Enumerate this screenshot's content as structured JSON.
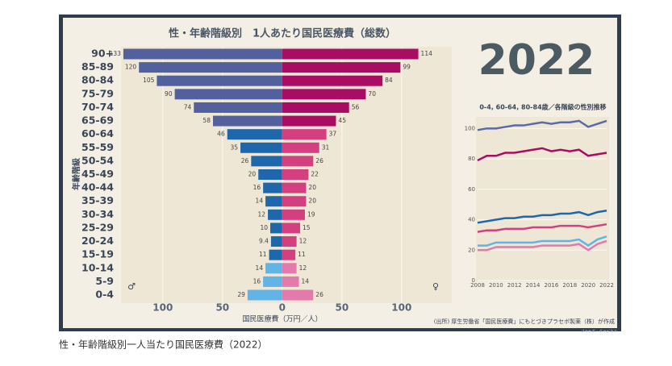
{
  "chart_data": [
    {
      "type": "bar",
      "orientation": "horizontal",
      "title": "性・年齢階級別　1人あたり国民医療費（総数）",
      "xlabel": "国民医療費（万円／人）",
      "ylabel": "年齢階級",
      "male_symbol": "♂",
      "female_symbol": "♀",
      "source": "(出所) 厚生労働省「国民医療費」にもとづきプラセボ製薬（株）が作成",
      "credit": "プラセボ・グラビカス",
      "categories": [
        "90+",
        "85-89",
        "80-84",
        "75-79",
        "70-74",
        "65-69",
        "60-64",
        "55-59",
        "50-54",
        "45-49",
        "40-44",
        "35-39",
        "30-34",
        "25-29",
        "20-24",
        "15-19",
        "10-14",
        "5-9",
        "0-4"
      ],
      "series": [
        {
          "values": [
            133,
            120,
            105,
            90,
            74,
            58,
            46,
            35,
            26,
            20,
            16,
            14,
            12,
            10,
            9.4,
            11,
            14,
            16,
            29
          ],
          "colors": [
            "#52609e",
            "#52609e",
            "#52609e",
            "#52609e",
            "#52609e",
            "#52609e",
            "#1f67ad",
            "#1f67ad",
            "#1f67ad",
            "#1f67ad",
            "#1f67ad",
            "#1f67ad",
            "#1f67ad",
            "#1f67ad",
            "#1f67ad",
            "#1f67ad",
            "#62b3e6",
            "#62b3e6",
            "#62b3e6"
          ]
        },
        {
          "values": [
            114,
            99,
            84,
            70,
            56,
            45,
            37,
            31,
            26,
            22,
            20,
            20,
            19,
            15,
            12,
            11,
            12,
            14,
            26
          ],
          "colors": [
            "#a80d63",
            "#a80d63",
            "#a80d63",
            "#a80d63",
            "#a80d63",
            "#a80d63",
            "#d33f7f",
            "#d33f7f",
            "#d33f7f",
            "#d33f7f",
            "#d33f7f",
            "#d33f7f",
            "#d33f7f",
            "#d33f7f",
            "#d33f7f",
            "#d33f7f",
            "#e47aab",
            "#e47aab",
            "#e47aab"
          ]
        }
      ],
      "xlim": [
        -135,
        142
      ],
      "xticks": [
        {
          "value": -100,
          "label": "100"
        },
        {
          "value": -50,
          "label": "50"
        },
        0,
        50,
        100
      ],
      "grid": true
    },
    {
      "type": "line",
      "annotation": "2022",
      "title": "0-4, 60-64, 80-84歳／各階級の性別推移",
      "x": [
        2008,
        2009,
        2010,
        2011,
        2012,
        2013,
        2014,
        2015,
        2016,
        2017,
        2018,
        2019,
        2020,
        2021,
        2022
      ],
      "series": [
        {
          "color": "#5a6aa6",
          "values": [
            99,
            100,
            100,
            101,
            102,
            102,
            103,
            104,
            103,
            104,
            104,
            105,
            101,
            103,
            105
          ]
        },
        {
          "color": "#a80d63",
          "values": [
            79,
            82,
            82,
            84,
            84,
            85,
            86,
            87,
            85,
            86,
            85,
            86,
            82,
            83,
            84
          ]
        },
        {
          "color": "#1f67ad",
          "values": [
            38,
            39,
            40,
            41,
            41,
            42,
            42,
            43,
            43,
            44,
            44,
            45,
            43,
            45,
            46
          ]
        },
        {
          "color": "#d33f7f",
          "values": [
            32,
            33,
            33,
            34,
            34,
            34,
            35,
            35,
            35,
            36,
            36,
            36,
            35,
            36,
            37
          ]
        },
        {
          "color": "#62b3e6",
          "values": [
            23,
            23,
            25,
            25,
            25,
            25,
            25,
            26,
            26,
            26,
            26,
            27,
            23,
            27,
            29
          ]
        },
        {
          "color": "#e47aab",
          "values": [
            20,
            20,
            22,
            22,
            22,
            22,
            22,
            23,
            23,
            23,
            23,
            24,
            20,
            24,
            26
          ]
        }
      ],
      "xlim": [
        2008,
        2022
      ],
      "xticks": [
        2008,
        2010,
        2012,
        2014,
        2016,
        2018,
        2020,
        2022
      ],
      "ylim": [
        0,
        106
      ],
      "yticks": [
        0,
        20,
        40,
        60,
        80,
        100
      ],
      "grid": true
    }
  ],
  "caption": "性・年齢階級別一人当たり国民医療費（2022）"
}
